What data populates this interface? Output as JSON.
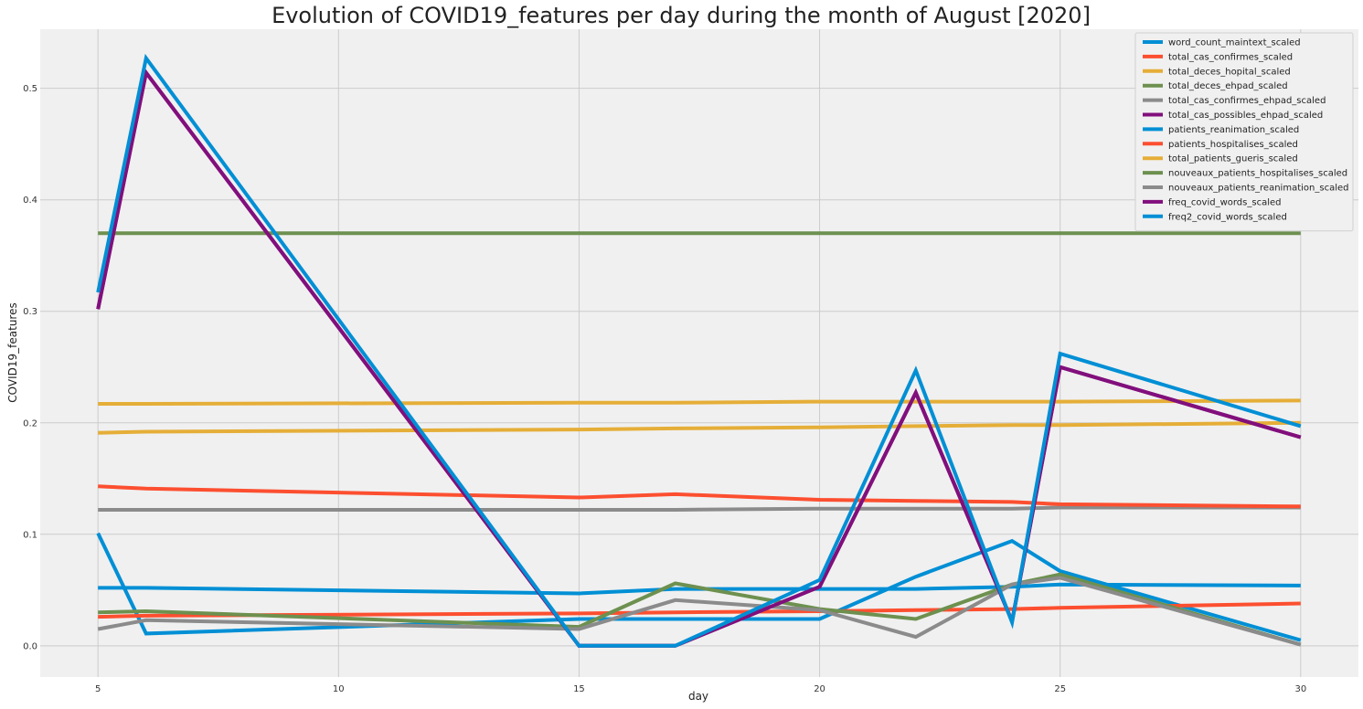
{
  "chart_data": {
    "type": "line",
    "title": "Evolution of COVID19_features per day during the month of August [2020]",
    "xlabel": "day",
    "ylabel": "COVID19_features",
    "xlim": [
      3.8,
      31.2
    ],
    "ylim": [
      -0.028,
      0.553
    ],
    "xticks": [
      5,
      10,
      15,
      20,
      25,
      30
    ],
    "yticks": [
      0.0,
      0.1,
      0.2,
      0.3,
      0.4,
      0.5
    ],
    "ytick_labels": [
      "0.0",
      "0.1",
      "0.2",
      "0.3",
      "0.4",
      "0.5"
    ],
    "grid": true,
    "legend_position": "top-right",
    "x": [
      5,
      6,
      15,
      17,
      20,
      22,
      24,
      25,
      30
    ],
    "series": [
      {
        "name": "word_count_maintext_scaled",
        "color": "#008fd5",
        "values": [
          0.101,
          0.011,
          0.024,
          0.024,
          0.024,
          0.062,
          0.094,
          0.067,
          0.005
        ]
      },
      {
        "name": "total_cas_confirmes_scaled",
        "color": "#fc4f30",
        "values": [
          0.026,
          0.027,
          0.029,
          0.03,
          0.031,
          0.032,
          0.033,
          0.034,
          0.038
        ]
      },
      {
        "name": "total_deces_hopital_scaled",
        "color": "#e5ae38",
        "values": [
          0.191,
          0.192,
          0.194,
          0.195,
          0.196,
          0.197,
          0.198,
          0.198,
          0.2
        ]
      },
      {
        "name": "total_deces_ehpad_scaled",
        "color": "#6d904f",
        "values": [
          0.37,
          0.37,
          0.37,
          0.37,
          0.37,
          0.37,
          0.37,
          0.37,
          0.37
        ]
      },
      {
        "name": "total_cas_confirmes_ehpad_scaled",
        "color": "#8b8b8b",
        "values": [
          0.122,
          0.122,
          0.122,
          0.122,
          0.123,
          0.123,
          0.123,
          0.124,
          0.124
        ]
      },
      {
        "name": "total_cas_possibles_ehpad_scaled",
        "color": "#810f7c",
        "values": [
          0.302,
          0.514,
          0.0,
          0.0,
          0.053,
          0.227,
          0.022,
          0.25,
          0.187
        ]
      },
      {
        "name": "patients_reanimation_scaled",
        "color": "#008fd5",
        "values": [
          0.052,
          0.052,
          0.047,
          0.051,
          0.051,
          0.051,
          0.053,
          0.055,
          0.054
        ]
      },
      {
        "name": "patients_hospitalises_scaled",
        "color": "#fc4f30",
        "values": [
          0.143,
          0.141,
          0.133,
          0.136,
          0.131,
          0.13,
          0.129,
          0.127,
          0.125
        ]
      },
      {
        "name": "total_patients_gueris_scaled",
        "color": "#e5ae38",
        "values": [
          0.217,
          0.217,
          0.218,
          0.218,
          0.219,
          0.219,
          0.219,
          0.219,
          0.22
        ]
      },
      {
        "name": "nouveaux_patients_hospitalises_scaled",
        "color": "#6d904f",
        "values": [
          0.03,
          0.031,
          0.017,
          0.056,
          0.033,
          0.024,
          0.055,
          0.064,
          0.001
        ]
      },
      {
        "name": "nouveaux_patients_reanimation_scaled",
        "color": "#8b8b8b",
        "values": [
          0.015,
          0.023,
          0.015,
          0.041,
          0.032,
          0.008,
          0.055,
          0.061,
          0.001
        ]
      },
      {
        "name": "freq_covid_words_scaled",
        "color": "#810f7c",
        "values": [
          0.302,
          0.514,
          0.0,
          0.0,
          0.053,
          0.227,
          0.022,
          0.25,
          0.187
        ]
      },
      {
        "name": "freq2_covid_words_scaled",
        "color": "#008fd5",
        "values": [
          0.317,
          0.527,
          0.0,
          0.0,
          0.059,
          0.247,
          0.021,
          0.262,
          0.197
        ]
      }
    ]
  }
}
